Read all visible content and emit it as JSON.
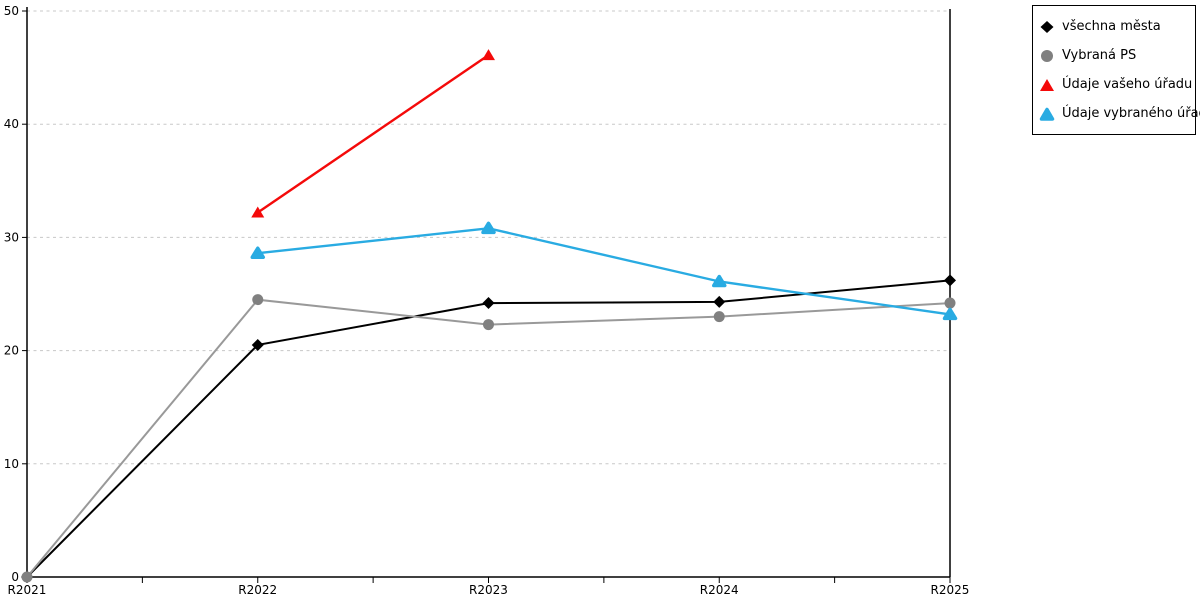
{
  "chart_data": {
    "type": "line",
    "title": "",
    "xlabel": "",
    "ylabel": "",
    "categories": [
      "R2021",
      "R2022",
      "R2023",
      "R2024",
      "R2025"
    ],
    "series": [
      {
        "name": "všechna města",
        "marker": "diamond",
        "line_color": "#000000",
        "marker_color": "#000000",
        "values": [
          0,
          20.5,
          24.2,
          24.3,
          26.2
        ]
      },
      {
        "name": "Vybraná PS",
        "marker": "circle",
        "line_color": "#999999",
        "marker_color": "#808080",
        "values": [
          0,
          24.5,
          22.3,
          23.0,
          24.2
        ]
      },
      {
        "name": "Údaje vašeho úřadu",
        "marker": "triangle",
        "line_color": "#F40A0A",
        "marker_color": "#F40A0A",
        "values": [
          null,
          32.2,
          46.1,
          null,
          null
        ]
      },
      {
        "name": "Údaje vybraného úřadu",
        "marker": "triangle-rounded",
        "line_color": "#29ABE2",
        "marker_color": "#29ABE2",
        "values": [
          null,
          28.6,
          30.8,
          26.1,
          23.2
        ]
      }
    ],
    "ylim": [
      0,
      50
    ],
    "yticks": [
      0,
      10,
      20,
      30,
      40,
      50
    ],
    "grid": "horizontal-dashed",
    "legend_position": "top-right"
  },
  "colors": {
    "grid": "#C8C8C8",
    "axis": "#000000",
    "background": "#FFFFFF"
  }
}
